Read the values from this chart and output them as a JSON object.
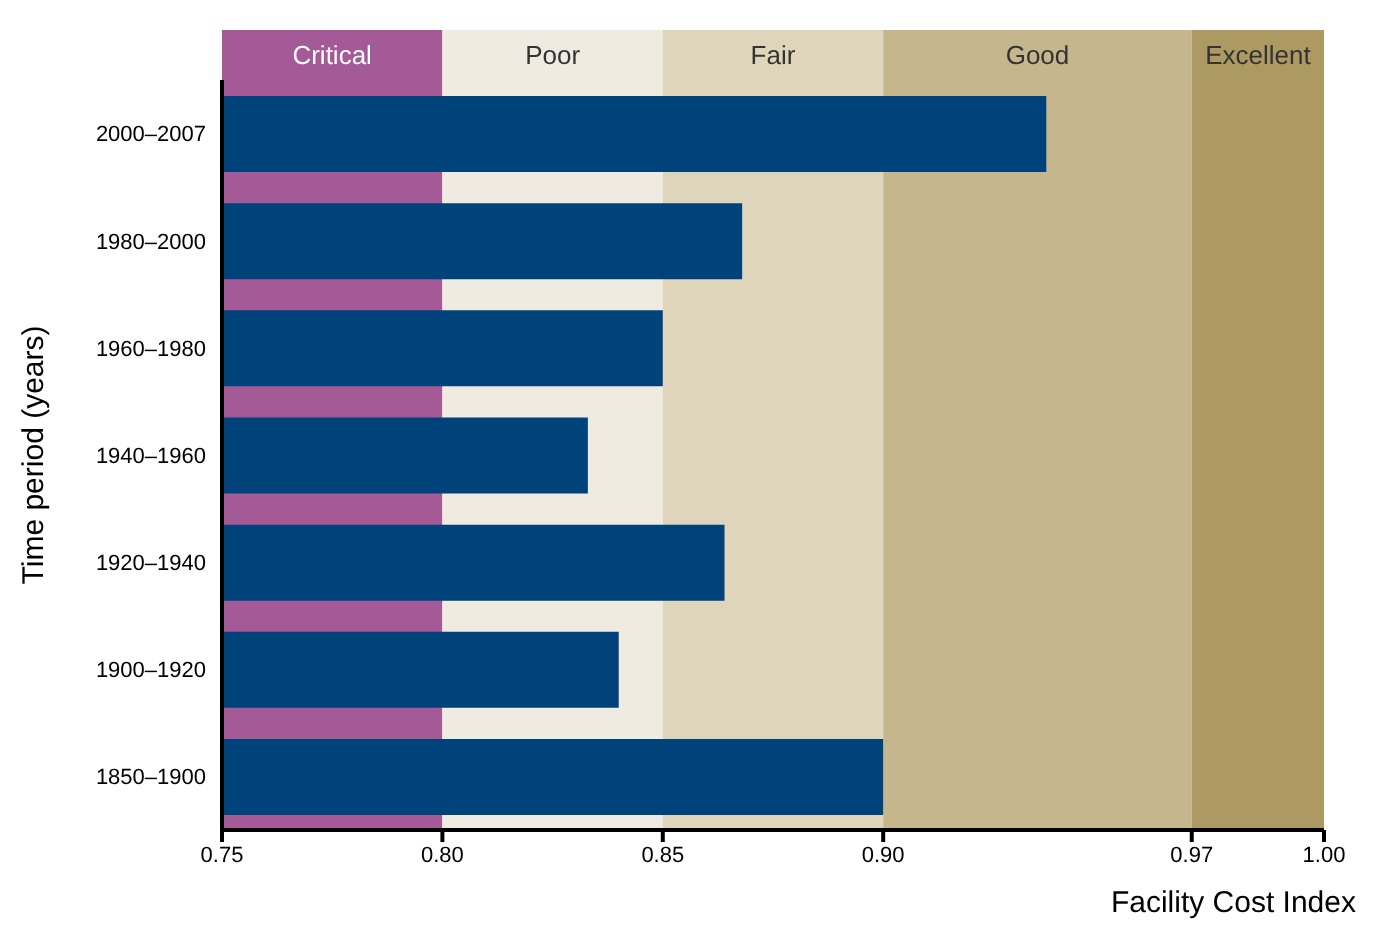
{
  "chart_data": {
    "type": "bar",
    "orientation": "horizontal",
    "xlabel": "Facility Cost Index",
    "ylabel": "Time period (years)",
    "categories": [
      "2000–2007",
      "1980–2000",
      "1960–1980",
      "1940–1960",
      "1920–1940",
      "1900–1920",
      "1850–1900"
    ],
    "values": [
      0.937,
      0.868,
      0.85,
      0.833,
      0.864,
      0.84,
      0.9
    ],
    "color": "#00427a",
    "xlim": [
      0.75,
      1.0
    ],
    "xticks": [
      {
        "value": 0.75,
        "label": "0.75"
      },
      {
        "value": 0.8,
        "label": "0.80"
      },
      {
        "value": 0.85,
        "label": "0.85"
      },
      {
        "value": 0.9,
        "label": "0.90"
      },
      {
        "value": 0.97,
        "label": "0.97"
      },
      {
        "value": 1.0,
        "label": "1.00"
      }
    ],
    "bands": [
      {
        "axis": "x",
        "from": 0.75,
        "to": 0.8,
        "label": "Critical",
        "color": "#a45a97"
      },
      {
        "axis": "x",
        "from": 0.8,
        "to": 0.85,
        "label": "Poor",
        "color": "#efebe0"
      },
      {
        "axis": "x",
        "from": 0.85,
        "to": 0.9,
        "label": "Fair",
        "color": "#ded5bb"
      },
      {
        "axis": "x",
        "from": 0.9,
        "to": 0.97,
        "label": "Good",
        "color": "#c5b68e"
      },
      {
        "axis": "x",
        "from": 0.97,
        "to": 1.0,
        "label": "Excellent",
        "color": "#ad9a62"
      }
    ],
    "grid": false,
    "legend": false
  }
}
